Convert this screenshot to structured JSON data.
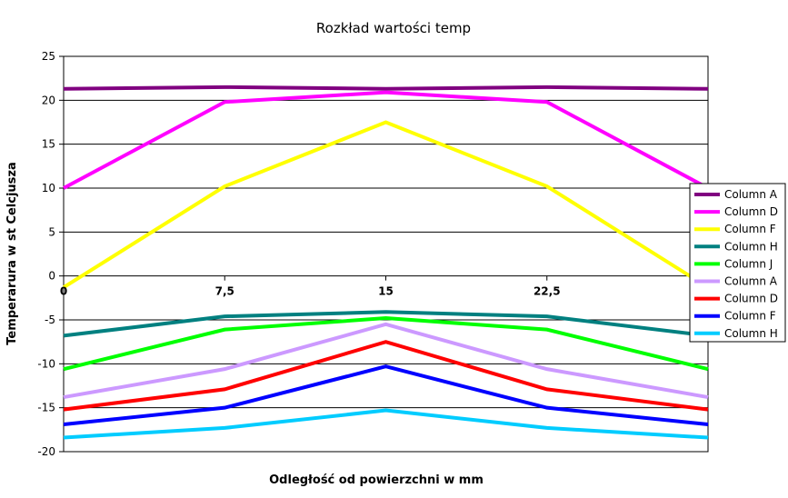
{
  "chart_data": {
    "type": "line",
    "title": "Rozkład wartości temp",
    "xlabel": "Odległość od powierzchni w mm",
    "ylabel": "Temperarura w st Celcjusza",
    "x": [
      0,
      7.5,
      15,
      22.5,
      30
    ],
    "x_tick_labels": [
      "0",
      "7,5",
      "15",
      "22,5",
      ""
    ],
    "xlim": [
      0,
      30
    ],
    "ylim": [
      -20,
      25
    ],
    "y_ticks": [
      -20,
      -15,
      -10,
      -5,
      0,
      5,
      10,
      15,
      20,
      25
    ],
    "grid": "horizontal",
    "legend_position": "right",
    "series": [
      {
        "name": "Column A",
        "color": "#800080",
        "values": [
          21.3,
          21.5,
          21.3,
          21.5,
          21.3
        ]
      },
      {
        "name": "Column D",
        "color": "#ff00ff",
        "values": [
          10.0,
          19.8,
          20.9,
          19.8,
          10.0
        ]
      },
      {
        "name": "Column F",
        "color": "#ffff00",
        "values": [
          -1.3,
          10.2,
          17.5,
          10.2,
          -1.3
        ]
      },
      {
        "name": "Column H",
        "color": "#008080",
        "values": [
          -6.8,
          -4.6,
          -4.1,
          -4.6,
          -6.8
        ]
      },
      {
        "name": "Column J",
        "color": "#00ff00",
        "values": [
          -10.6,
          -6.1,
          -4.8,
          -6.1,
          -10.6
        ]
      },
      {
        "name": "Column A",
        "color": "#cc99ff",
        "values": [
          -13.8,
          -10.6,
          -5.5,
          -10.6,
          -13.8
        ]
      },
      {
        "name": "Column D",
        "color": "#ff0000",
        "values": [
          -15.2,
          -12.9,
          -7.5,
          -12.9,
          -15.2
        ]
      },
      {
        "name": "Column F",
        "color": "#0000ff",
        "values": [
          -16.9,
          -15.0,
          -10.3,
          -15.0,
          -16.9
        ]
      },
      {
        "name": "Column H",
        "color": "#00ccff",
        "values": [
          -18.4,
          -17.3,
          -15.3,
          -17.3,
          -18.4
        ]
      }
    ]
  }
}
